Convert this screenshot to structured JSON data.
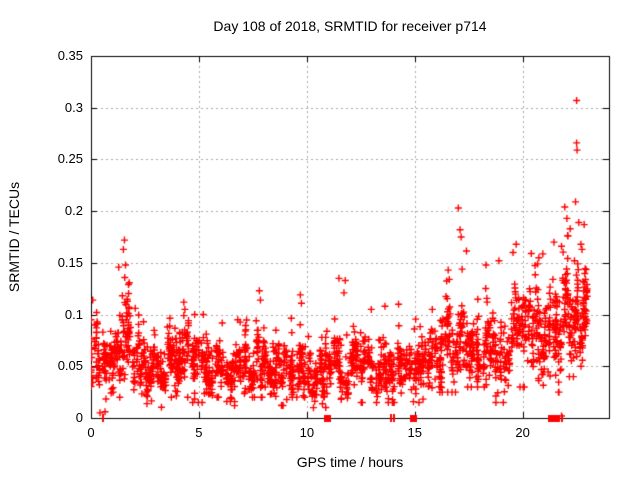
{
  "chart_data": {
    "type": "scatter",
    "title": "Day 108 of 2018, SRMTID for receiver p714",
    "xlabel": "GPS time / hours",
    "ylabel": "SRMTID / TECUs",
    "xlim": [
      0,
      24
    ],
    "ylim": [
      0,
      0.35
    ],
    "xticks": [
      [
        0,
        "0"
      ],
      [
        5,
        "5"
      ],
      [
        10,
        "10"
      ],
      [
        15,
        "15"
      ],
      [
        20,
        "20"
      ]
    ],
    "yticks": [
      [
        0,
        "0"
      ],
      [
        0.05,
        "0.05"
      ],
      [
        0.1,
        "0.1"
      ],
      [
        0.15,
        "0.15"
      ],
      [
        0.2,
        "0.2"
      ],
      [
        0.25,
        "0.25"
      ],
      [
        0.3,
        "0.3"
      ],
      [
        0.35,
        "0.35"
      ]
    ],
    "grid": true,
    "legend": "none",
    "marker": "plus",
    "colors": {
      "points": "#ff0000",
      "axes": "#000000",
      "grid": "#aaaaaa",
      "background": "#ffffff"
    },
    "seed": 7,
    "density_profile": [
      [
        0.0,
        0.3,
        30,
        0.068,
        0.022,
        0.03,
        0.115
      ],
      [
        0.3,
        1.0,
        70,
        0.048,
        0.018,
        0.005,
        0.095
      ],
      [
        1.0,
        1.3,
        35,
        0.058,
        0.02,
        0.025,
        0.12
      ],
      [
        1.3,
        1.9,
        70,
        0.078,
        0.034,
        0.02,
        0.175
      ],
      [
        1.9,
        2.5,
        60,
        0.055,
        0.02,
        0.012,
        0.105
      ],
      [
        2.5,
        3.5,
        100,
        0.045,
        0.016,
        0.006,
        0.09
      ],
      [
        3.5,
        4.1,
        60,
        0.05,
        0.018,
        0.02,
        0.1
      ],
      [
        4.1,
        4.6,
        55,
        0.058,
        0.022,
        0.02,
        0.115
      ],
      [
        4.6,
        5.4,
        80,
        0.05,
        0.018,
        0.015,
        0.1
      ],
      [
        5.4,
        6.2,
        80,
        0.054,
        0.018,
        0.02,
        0.105
      ],
      [
        6.2,
        7.0,
        80,
        0.046,
        0.016,
        0.012,
        0.095
      ],
      [
        7.0,
        7.6,
        60,
        0.05,
        0.019,
        0.02,
        0.105
      ],
      [
        7.6,
        8.1,
        55,
        0.058,
        0.024,
        0.02,
        0.125
      ],
      [
        8.1,
        9.3,
        110,
        0.046,
        0.016,
        0.012,
        0.095
      ],
      [
        9.3,
        10.0,
        70,
        0.053,
        0.021,
        0.02,
        0.12
      ],
      [
        10.0,
        11.2,
        110,
        0.045,
        0.017,
        0.01,
        0.1
      ],
      [
        11.2,
        12.1,
        90,
        0.053,
        0.022,
        0.018,
        0.135
      ],
      [
        12.1,
        13.3,
        110,
        0.049,
        0.018,
        0.015,
        0.105
      ],
      [
        13.3,
        14.3,
        95,
        0.05,
        0.02,
        0.015,
        0.115
      ],
      [
        14.3,
        15.2,
        85,
        0.049,
        0.018,
        0.015,
        0.105
      ],
      [
        15.2,
        16.2,
        95,
        0.05,
        0.018,
        0.018,
        0.105
      ],
      [
        16.2,
        17.0,
        80,
        0.063,
        0.027,
        0.025,
        0.155
      ],
      [
        17.0,
        17.6,
        60,
        0.09,
        0.034,
        0.03,
        0.185
      ],
      [
        17.6,
        18.6,
        90,
        0.07,
        0.025,
        0.03,
        0.14
      ],
      [
        18.6,
        19.4,
        75,
        0.065,
        0.028,
        0.015,
        0.16
      ],
      [
        19.4,
        20.2,
        75,
        0.075,
        0.028,
        0.03,
        0.16
      ],
      [
        20.2,
        21.2,
        95,
        0.085,
        0.03,
        0.03,
        0.165
      ],
      [
        21.2,
        22.0,
        90,
        0.088,
        0.033,
        0.025,
        0.175
      ],
      [
        22.0,
        22.6,
        75,
        0.095,
        0.032,
        0.04,
        0.185
      ],
      [
        22.6,
        23.05,
        60,
        0.093,
        0.027,
        0.05,
        0.155
      ]
    ],
    "outliers": [
      [
        0.08,
        0.114
      ],
      [
        0.65,
        0.006
      ],
      [
        1.5,
        0.163
      ],
      [
        1.55,
        0.172
      ],
      [
        1.6,
        0.148
      ],
      [
        2.05,
        0.106
      ],
      [
        4.3,
        0.112
      ],
      [
        4.35,
        0.105
      ],
      [
        7.8,
        0.123
      ],
      [
        7.85,
        0.114
      ],
      [
        9.7,
        0.119
      ],
      [
        9.75,
        0.111
      ],
      [
        11.78,
        0.133
      ],
      [
        11.72,
        0.121
      ],
      [
        13.62,
        0.108
      ],
      [
        14.25,
        0.11
      ],
      [
        16.55,
        0.143
      ],
      [
        16.6,
        0.134
      ],
      [
        17.02,
        0.203
      ],
      [
        17.1,
        0.182
      ],
      [
        17.15,
        0.175
      ],
      [
        18.3,
        0.148
      ],
      [
        18.9,
        0.152
      ],
      [
        19.7,
        0.168
      ],
      [
        20.4,
        0.159
      ],
      [
        20.75,
        0.155
      ],
      [
        21.45,
        0.17
      ],
      [
        21.8,
        0.166
      ],
      [
        21.8,
        0.002
      ],
      [
        21.95,
        0.204
      ],
      [
        22.05,
        0.193
      ],
      [
        22.1,
        0.176
      ],
      [
        22.2,
        0.183
      ],
      [
        22.5,
        0.307
      ],
      [
        22.5,
        0.266
      ],
      [
        22.52,
        0.259
      ],
      [
        22.45,
        0.209
      ],
      [
        22.4,
        0.152
      ],
      [
        22.6,
        0.189
      ],
      [
        22.55,
        0.149
      ],
      [
        22.7,
        0.168
      ],
      [
        22.75,
        0.163
      ],
      [
        22.85,
        0.187
      ]
    ],
    "zero_markers": [
      {
        "x": 0.55,
        "style": "tick"
      },
      {
        "x": 10.93,
        "style": "square"
      },
      {
        "x": 13.88,
        "style": "tick"
      },
      {
        "x": 14.05,
        "style": "tick"
      },
      {
        "x": 14.93,
        "style": "square"
      },
      {
        "x": 21.3,
        "style": "square"
      },
      {
        "x": 21.55,
        "style": "square"
      },
      {
        "x": 21.8,
        "style": "tick"
      }
    ]
  }
}
